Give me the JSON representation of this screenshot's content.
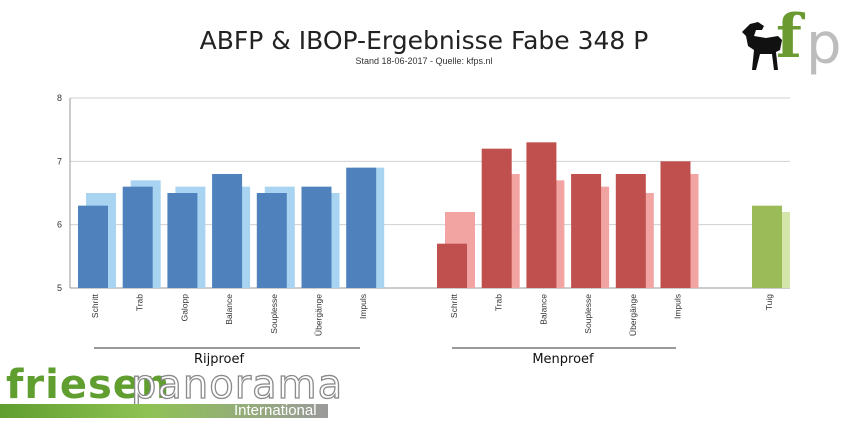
{
  "header": {
    "title": "ABFP & IBOP-Ergebnisse Fabe 348 P",
    "subtitle": "Stand 18-06-2017 - Quelle: kfps.nl"
  },
  "logos": {
    "corner_f": "f",
    "corner_p": "p",
    "brand_friesen": "friesen",
    "brand_panorama": "panorama",
    "brand_international": "International",
    "horse_icon": "horse-silhouette-icon"
  },
  "colors": {
    "rijproef_dark": "#4f81bd",
    "rijproef_light": "#a9d4f1",
    "menproef_dark": "#c0504d",
    "menproef_light": "#f2a4a3",
    "tuig_dark": "#9bbb59",
    "tuig_light": "#d3e5a8"
  },
  "chart_data": {
    "type": "bar",
    "ylim": [
      5,
      8
    ],
    "yticks": [
      5,
      6,
      7,
      8
    ],
    "grid": true,
    "groups": [
      {
        "label": "Rijproef",
        "categories": [
          "Schritt",
          "Trab",
          "Galopp",
          "Balance",
          "Souplesse",
          "Übergänge",
          "Impuls"
        ],
        "series": [
          {
            "values": [
              6.3,
              6.6,
              6.5,
              6.8,
              6.5,
              6.6,
              6.9
            ]
          },
          {
            "values": [
              6.5,
              6.7,
              6.6,
              6.6,
              6.6,
              6.5,
              6.9
            ]
          }
        ]
      },
      {
        "label": "Menproef",
        "categories": [
          "Schritt",
          "Trab",
          "Balance",
          "Souplesse",
          "Übergänge",
          "Impuls"
        ],
        "series": [
          {
            "values": [
              5.7,
              7.2,
              7.3,
              6.8,
              6.8,
              7.0
            ]
          },
          {
            "values": [
              6.2,
              6.8,
              6.7,
              6.6,
              6.5,
              6.8
            ]
          }
        ]
      },
      {
        "label": "",
        "categories": [
          "Tuig"
        ],
        "series": [
          {
            "values": [
              6.3
            ]
          },
          {
            "values": [
              6.2
            ]
          }
        ]
      }
    ]
  }
}
